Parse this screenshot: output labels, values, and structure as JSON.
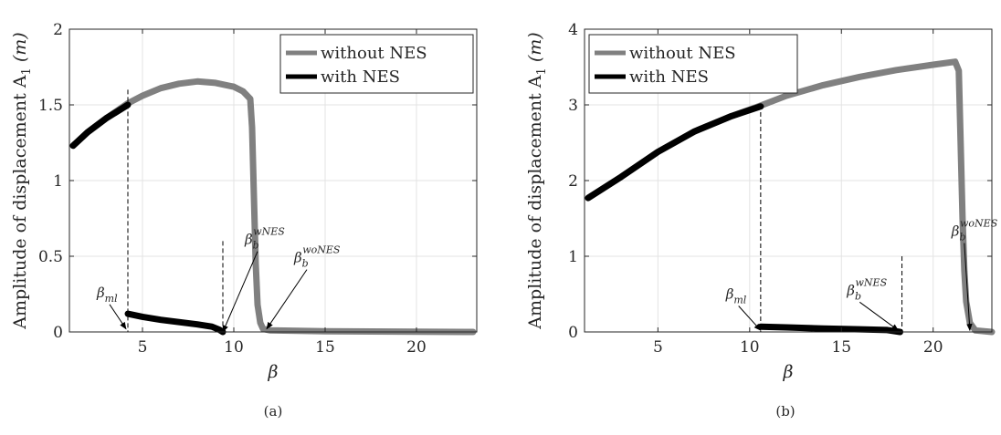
{
  "chart_data": [
    {
      "type": "line",
      "panel_label": "(a)",
      "xlabel": "β",
      "ylabel": "Amplitude of displacement A",
      "ylabel_subscript": "1",
      "ylabel_unit": " (m)",
      "xlim": [
        1,
        23.3
      ],
      "ylim": [
        0,
        2
      ],
      "xticks": [
        5,
        10,
        15,
        20
      ],
      "yticks": [
        0,
        0.5,
        1,
        1.5,
        2
      ],
      "ytick_labels": [
        "0",
        "0.5",
        "1",
        "1.5",
        "2"
      ],
      "grid": true,
      "legend_position": "top-right",
      "series": [
        {
          "name": "without NES",
          "color": "#808080",
          "points": [
            [
              1.2,
              1.23
            ],
            [
              2,
              1.32
            ],
            [
              3,
              1.41
            ],
            [
              4.2,
              1.51
            ],
            [
              5,
              1.56
            ],
            [
              6,
              1.61
            ],
            [
              7,
              1.64
            ],
            [
              8,
              1.655
            ],
            [
              9,
              1.645
            ],
            [
              10,
              1.62
            ],
            [
              10.5,
              1.59
            ],
            [
              10.9,
              1.54
            ],
            [
              11,
              1.35
            ],
            [
              11.1,
              0.9
            ],
            [
              11.2,
              0.45
            ],
            [
              11.3,
              0.18
            ],
            [
              11.45,
              0.06
            ],
            [
              11.6,
              0.02
            ],
            [
              12,
              0.01
            ],
            [
              15,
              0.005
            ],
            [
              23.1,
              0.0
            ]
          ]
        },
        {
          "name": "with NES",
          "color": "#000000",
          "segments": [
            [
              [
                1.2,
                1.23
              ],
              [
                2,
                1.32
              ],
              [
                3,
                1.41
              ],
              [
                4.2,
                1.5
              ]
            ],
            [
              [
                4.2,
                0.12
              ],
              [
                5,
                0.1
              ],
              [
                6,
                0.08
              ],
              [
                7,
                0.065
              ],
              [
                8,
                0.05
              ],
              [
                8.8,
                0.035
              ],
              [
                9.2,
                0.015
              ],
              [
                9.4,
                0.0
              ]
            ]
          ]
        }
      ],
      "vlines": [
        {
          "x": 4.2,
          "y_top": 1.6
        },
        {
          "x": 9.4,
          "y_top": 0.6
        }
      ],
      "annotations": [
        {
          "base": "β",
          "sub": "ml",
          "sup": "",
          "text_pos": [
            2.5,
            0.23
          ],
          "target": [
            4.1,
            0.02
          ]
        },
        {
          "base": "β",
          "sub": "b",
          "sup": "wNES",
          "text_pos": [
            10.6,
            0.58
          ],
          "target": [
            9.4,
            0.0
          ]
        },
        {
          "base": "β",
          "sub": "b",
          "sup": "woNES",
          "text_pos": [
            13.3,
            0.46
          ],
          "target": [
            11.8,
            0.02
          ]
        }
      ]
    },
    {
      "type": "line",
      "panel_label": "(b)",
      "xlabel": "β",
      "ylabel": "Amplitude of displacement A",
      "ylabel_subscript": "1",
      "ylabel_unit": " (m)",
      "xlim": [
        1,
        23.2
      ],
      "ylim": [
        0,
        4
      ],
      "xticks": [
        5,
        10,
        15,
        20
      ],
      "yticks": [
        0,
        1,
        2,
        3,
        4
      ],
      "ytick_labels": [
        "0",
        "1",
        "2",
        "3",
        "4"
      ],
      "grid": true,
      "legend_position": "top-left",
      "series": [
        {
          "name": "without NES",
          "color": "#808080",
          "points": [
            [
              1.2,
              1.77
            ],
            [
              3,
              2.05
            ],
            [
              5,
              2.38
            ],
            [
              7,
              2.65
            ],
            [
              9,
              2.85
            ],
            [
              10.6,
              2.99
            ],
            [
              12,
              3.12
            ],
            [
              14,
              3.26
            ],
            [
              16,
              3.37
            ],
            [
              18,
              3.46
            ],
            [
              20,
              3.53
            ],
            [
              21.2,
              3.57
            ],
            [
              21.4,
              3.45
            ],
            [
              21.5,
              2.5
            ],
            [
              21.6,
              1.5
            ],
            [
              21.7,
              0.8
            ],
            [
              21.8,
              0.4
            ],
            [
              22,
              0.12
            ],
            [
              22.3,
              0.02
            ],
            [
              23.2,
              0.0
            ]
          ]
        },
        {
          "name": "with NES",
          "color": "#000000",
          "segments": [
            [
              [
                1.2,
                1.77
              ],
              [
                3,
                2.05
              ],
              [
                5,
                2.38
              ],
              [
                7,
                2.65
              ],
              [
                9,
                2.85
              ],
              [
                10.6,
                2.98
              ]
            ],
            [
              [
                10.6,
                0.07
              ],
              [
                12,
                0.06
              ],
              [
                14,
                0.045
              ],
              [
                16,
                0.035
              ],
              [
                17.5,
                0.025
              ],
              [
                18.2,
                0.0
              ]
            ]
          ]
        }
      ],
      "vlines": [
        {
          "x": 10.6,
          "y_top": 3.0
        },
        {
          "x": 18.3,
          "y_top": 1.0
        }
      ],
      "annotations": [
        {
          "base": "β",
          "sub": "ml",
          "sup": "",
          "text_pos": [
            8.7,
            0.44
          ],
          "target": [
            10.6,
            0.02
          ]
        },
        {
          "base": "β",
          "sub": "b",
          "sup": "wNES",
          "text_pos": [
            15.3,
            0.49
          ],
          "target": [
            18.1,
            0.02
          ]
        },
        {
          "base": "β",
          "sub": "b",
          "sup": "woNES",
          "text_pos": [
            21.0,
            1.27
          ],
          "target": [
            22.0,
            0.02
          ]
        }
      ]
    }
  ]
}
